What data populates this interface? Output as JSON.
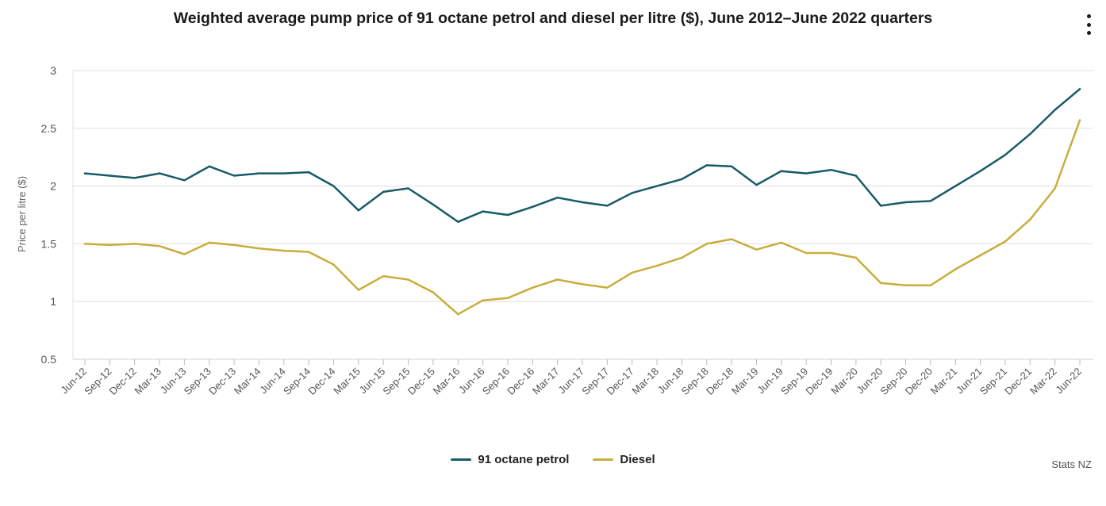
{
  "chart_data": {
    "type": "line",
    "title": "Weighted average pump price of 91 octane petrol and diesel per litre ($), June 2012–June 2022 quarters",
    "ylabel": "Price per litre ($)",
    "xlabel": "",
    "ylim": [
      0.5,
      3
    ],
    "yticks": [
      "0.5",
      "1",
      "1.5",
      "2",
      "2.5",
      "3"
    ],
    "grid": true,
    "legend_position": "bottom-center",
    "categories": [
      "Jun-12",
      "Sep-12",
      "Dec-12",
      "Mar-13",
      "Jun-13",
      "Sep-13",
      "Dec-13",
      "Mar-14",
      "Jun-14",
      "Sep-14",
      "Dec-14",
      "Mar-15",
      "Jun-15",
      "Sep-15",
      "Dec-15",
      "Mar-16",
      "Jun-16",
      "Sep-16",
      "Dec-16",
      "Mar-17",
      "Jun-17",
      "Sep-17",
      "Dec-17",
      "Mar-18",
      "Jun-18",
      "Sep-18",
      "Dec-18",
      "Mar-19",
      "Jun-19",
      "Sep-19",
      "Dec-19",
      "Mar-20",
      "Jun-20",
      "Sep-20",
      "Dec-20",
      "Mar-21",
      "Jun-21",
      "Sep-21",
      "Dec-21",
      "Mar-22",
      "Jun-22"
    ],
    "series": [
      {
        "name": "91 octane petrol",
        "color": "#195a6a",
        "values": [
          2.11,
          2.09,
          2.07,
          2.11,
          2.05,
          2.17,
          2.09,
          2.11,
          2.11,
          2.12,
          2.0,
          1.79,
          1.95,
          1.98,
          1.84,
          1.69,
          1.78,
          1.75,
          1.82,
          1.9,
          1.86,
          1.83,
          1.94,
          2.0,
          2.06,
          2.18,
          2.17,
          2.01,
          2.13,
          2.11,
          2.14,
          2.09,
          1.83,
          1.86,
          1.87,
          2.0,
          2.13,
          2.27,
          2.45,
          2.66,
          2.84
        ]
      },
      {
        "name": "Diesel",
        "color": "#c9ad3c",
        "values": [
          1.5,
          1.49,
          1.5,
          1.48,
          1.41,
          1.51,
          1.49,
          1.46,
          1.44,
          1.43,
          1.32,
          1.1,
          1.22,
          1.19,
          1.08,
          0.89,
          1.01,
          1.03,
          1.12,
          1.19,
          1.15,
          1.12,
          1.25,
          1.31,
          1.38,
          1.5,
          1.54,
          1.45,
          1.51,
          1.42,
          1.42,
          1.38,
          1.16,
          1.14,
          1.14,
          1.28,
          1.4,
          1.52,
          1.71,
          1.98,
          2.57
        ]
      }
    ]
  },
  "credit": "Stats NZ",
  "menu_icon": "kebab-menu-icon"
}
